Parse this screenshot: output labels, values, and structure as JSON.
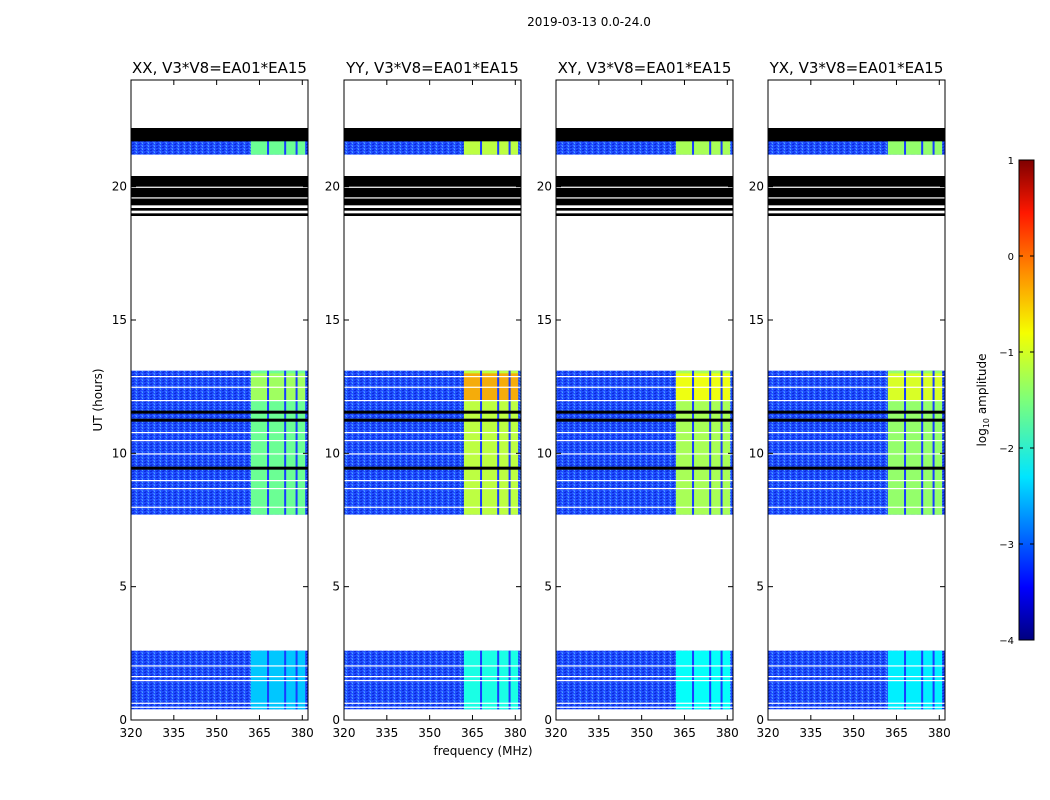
{
  "chart_data": {
    "type": "heatmap",
    "suptitle": "2019-03-13 0.0-24.0",
    "xlabel": "frequency (MHz)",
    "ylabel": "UT (hours)",
    "x_range": [
      320,
      382
    ],
    "y_range": [
      0,
      24
    ],
    "x_ticks": [
      "320",
      "335",
      "350",
      "365",
      "380"
    ],
    "y_ticks": [
      "0",
      "5",
      "10",
      "15",
      "20"
    ],
    "colorbar": {
      "label_prefix": "log",
      "label_subscript": "10",
      "label_suffix": " amplitude",
      "range": [
        -4,
        1
      ],
      "ticks": [
        "−4",
        "−3",
        "−2",
        "−1",
        "0",
        "1"
      ],
      "colormap": "jet"
    },
    "panels": [
      {
        "title": "XX, V3*V8=EA01*EA15",
        "band_level": -1.6,
        "peak_level": -1.3
      },
      {
        "title": "YY, V3*V8=EA01*EA15",
        "band_level": -1.2,
        "peak_level": -0.4
      },
      {
        "title": "XY, V3*V8=EA01*EA15",
        "band_level": -1.3,
        "peak_level": -0.9
      },
      {
        "title": "YX, V3*V8=EA01*EA15",
        "band_level": -1.4,
        "peak_level": -1.0
      }
    ],
    "background_level": -3.2,
    "band_mhz": [
      362,
      381
    ],
    "band_channel_gaps_mhz": [
      368,
      374,
      378
    ],
    "observed_segments_hours": [
      [
        0.4,
        2.6
      ],
      [
        7.7,
        13.1
      ],
      [
        21.2,
        22.2
      ]
    ],
    "flagged_segments_hours": [
      [
        19.3,
        20.4
      ],
      [
        18.9,
        19.0
      ],
      [
        19.1,
        19.2
      ],
      [
        21.7,
        22.2
      ]
    ],
    "gap_lines_hours": [
      0.5,
      0.65,
      1.5,
      1.65,
      2.05,
      8.0,
      8.7,
      9.0,
      9.5,
      10.0,
      10.5,
      10.8,
      11.3,
      11.6,
      12.0,
      12.5,
      12.9
    ]
  }
}
